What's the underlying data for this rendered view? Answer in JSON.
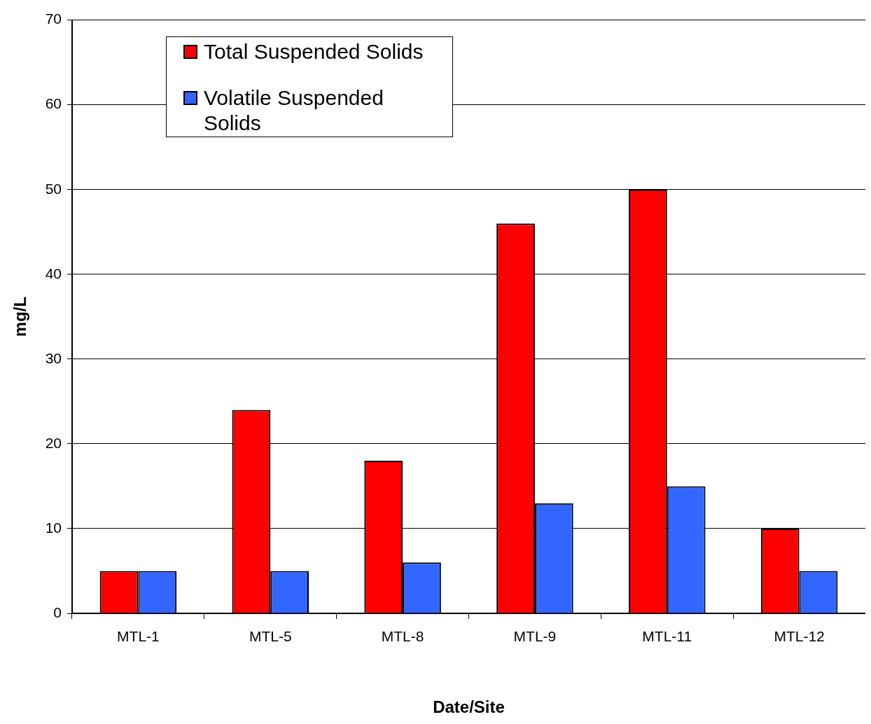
{
  "chart_data": {
    "type": "bar",
    "xlabel": "Date/Site",
    "ylabel": "mg/L",
    "categories": [
      "MTL-1",
      "MTL-5",
      "MTL-8",
      "MTL-9",
      "MTL-11",
      "MTL-12"
    ],
    "series": [
      {
        "name": "Total Suspended Solids",
        "color": "#ff0000",
        "values": [
          5,
          24,
          18,
          46,
          50,
          10
        ]
      },
      {
        "name": "Volatile Suspended Solids",
        "color": "#3366ff",
        "values": [
          5,
          5,
          6,
          13,
          15,
          5
        ]
      }
    ],
    "ylim": [
      0,
      70
    ],
    "yticks": [
      0,
      10,
      20,
      30,
      40,
      50,
      60,
      70
    ],
    "grid": "y",
    "legend": "top left"
  }
}
